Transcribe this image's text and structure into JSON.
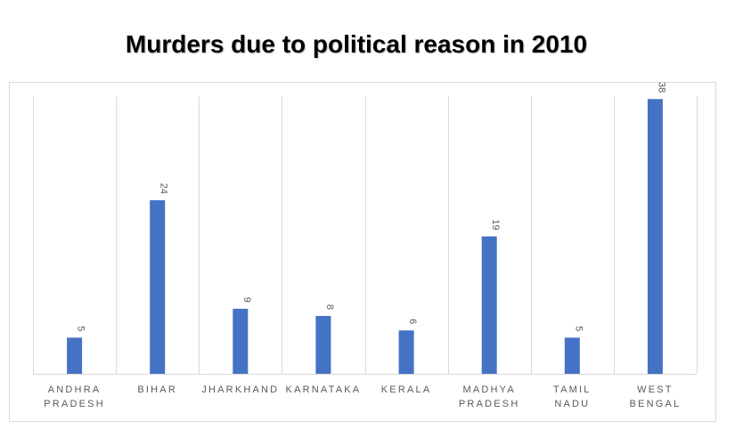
{
  "chart_data": {
    "type": "bar",
    "title": "Murders due to political reason in 2010",
    "categories": [
      [
        "ANDHRA",
        "PRADESH"
      ],
      [
        "BIHAR"
      ],
      [
        "JHARKHAND"
      ],
      [
        "KARNATAKA"
      ],
      [
        "KERALA"
      ],
      [
        "MADHYA",
        "PRADESH"
      ],
      [
        "TAMIL",
        "NADU"
      ],
      [
        "WEST",
        "BENGAL"
      ]
    ],
    "values": [
      5,
      24,
      9,
      8,
      6,
      19,
      5,
      38
    ],
    "value_labels": [
      "5",
      "24",
      "9",
      "8",
      "6",
      "19",
      "5",
      "38"
    ],
    "series_color": "#4472C4",
    "ylim": [
      0,
      40
    ],
    "grid": "vertical",
    "xlabel": "",
    "ylabel": ""
  }
}
